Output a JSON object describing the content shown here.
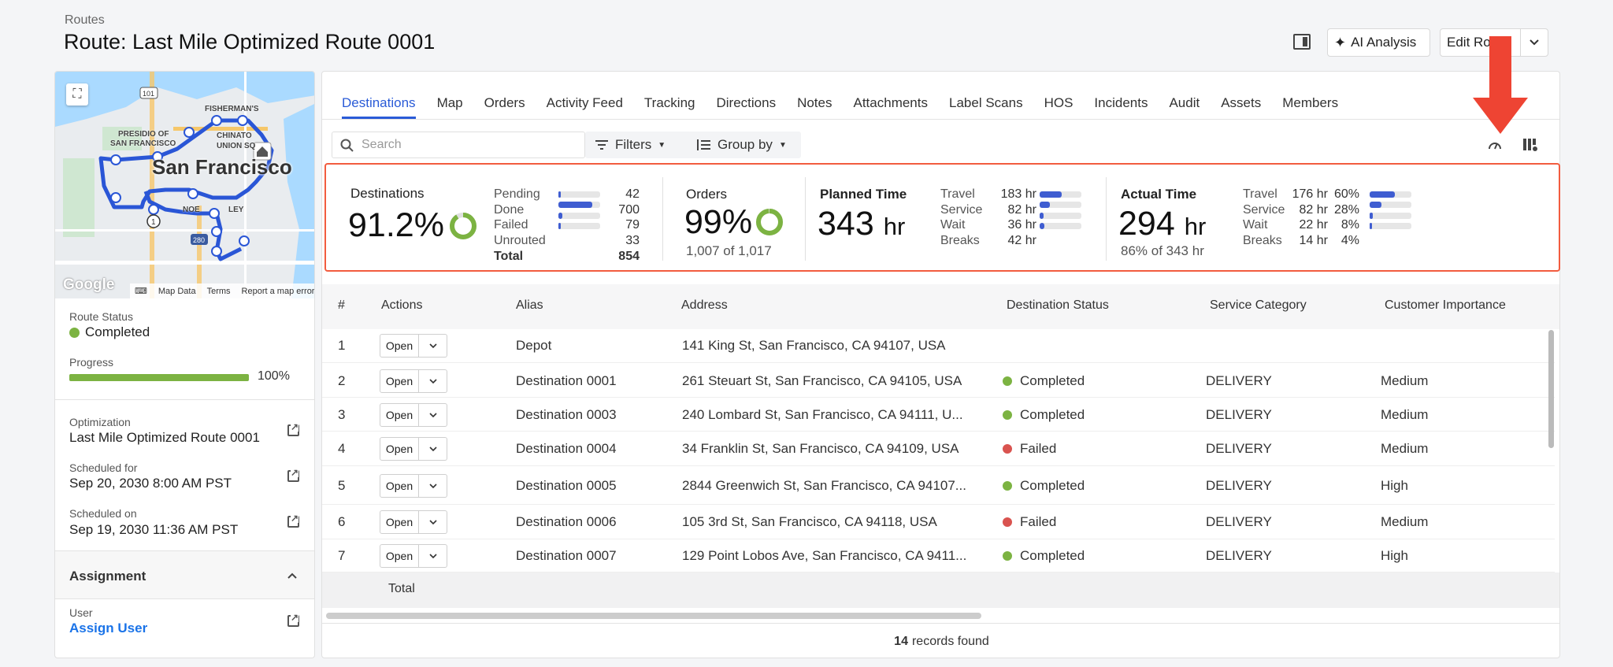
{
  "header": {
    "breadcrumb": "Routes",
    "title": "Route: Last Mile Optimized Route 0001",
    "ai_button": "AI Analysis",
    "edit_button": "Edit Ro"
  },
  "map": {
    "city_label": "San Francisco",
    "labels": [
      "FISHERMAN'S",
      "PRESIDIO OF",
      "SAN FRANCISCO",
      "CHINATO",
      "UNION SQ",
      "NOE",
      "LEY",
      "101",
      "280",
      "1"
    ],
    "google": "Google",
    "footer": [
      "Map Data",
      "Terms",
      "Report a map error"
    ]
  },
  "sidebar": {
    "route_status_label": "Route Status",
    "route_status": "Completed",
    "progress_label": "Progress",
    "progress_percent": 100,
    "progress_text": "100%",
    "optimization_label": "Optimization",
    "optimization_value": "Last Mile Optimized Route 0001",
    "scheduled_for_label": "Scheduled for",
    "scheduled_for_value": "Sep 20, 2030 8:00 AM PST",
    "scheduled_on_label": "Scheduled on",
    "scheduled_on_value": "Sep 19, 2030 11:36 AM PST",
    "assignment_title": "Assignment",
    "user_label": "User",
    "user_link": "Assign User"
  },
  "tabs": [
    "Destinations",
    "Map",
    "Orders",
    "Activity Feed",
    "Tracking",
    "Directions",
    "Notes",
    "Attachments",
    "Label Scans",
    "HOS",
    "Incidents",
    "Audit",
    "Assets",
    "Members"
  ],
  "toolbar": {
    "search_placeholder": "Search",
    "filters": "Filters",
    "group_by": "Group by"
  },
  "summary": {
    "destinations": {
      "title": "Destinations",
      "percent": "91.2%",
      "ring_fraction": 0.912,
      "breakdown": [
        {
          "label": "Pending",
          "value": "42",
          "fraction": 0.05
        },
        {
          "label": "Done",
          "value": "700",
          "fraction": 0.82
        },
        {
          "label": "Failed",
          "value": "79",
          "fraction": 0.09
        },
        {
          "label": "Unrouted",
          "value": "33",
          "fraction": 0.04
        }
      ],
      "total_label": "Total",
      "total_value": "854"
    },
    "orders": {
      "title": "Orders",
      "percent": "99%",
      "ring_fraction": 0.99,
      "sub": "1,007 of 1,017"
    },
    "planned": {
      "title": "Planned Time",
      "value": "343",
      "unit": "hr",
      "breakdown": [
        {
          "label": "Travel",
          "value": "183 hr",
          "fraction": 0.53
        },
        {
          "label": "Service",
          "value": "82 hr",
          "fraction": 0.24
        },
        {
          "label": "Wait",
          "value": "36 hr",
          "fraction": 0.1
        },
        {
          "label": "Breaks",
          "value": "42 hr",
          "fraction": 0.12
        }
      ]
    },
    "actual": {
      "title": "Actual Time",
      "value": "294",
      "unit": "hr",
      "sub": "86% of 343 hr",
      "breakdown": [
        {
          "label": "Travel",
          "value": "176 hr",
          "pct": "60%",
          "fraction": 0.6
        },
        {
          "label": "Service",
          "value": "82 hr",
          "pct": "28%",
          "fraction": 0.28
        },
        {
          "label": "Wait",
          "value": "22 hr",
          "pct": "8%",
          "fraction": 0.08
        },
        {
          "label": "Breaks",
          "value": "14 hr",
          "pct": "4%",
          "fraction": 0.04
        }
      ]
    }
  },
  "table": {
    "columns": [
      "#",
      "Actions",
      "Alias",
      "Address",
      "Destination Status",
      "Service Category",
      "Customer Importance"
    ],
    "open_label": "Open",
    "rows": [
      {
        "num": "1",
        "alias": "Depot",
        "address": "141 King St, San Francisco, CA 94107, USA",
        "status": "",
        "category": "",
        "importance": ""
      },
      {
        "num": "2",
        "alias": "Destination 0001",
        "address": "261 Steuart St, San Francisco, CA 94105, USA",
        "status": "Completed",
        "category": "DELIVERY",
        "importance": "Medium"
      },
      {
        "num": "3",
        "alias": "Destination 0003",
        "address": "240 Lombard St, San Francisco, CA 94111, U...",
        "status": "Completed",
        "category": "DELIVERY",
        "importance": "Medium"
      },
      {
        "num": "4",
        "alias": "Destination 0004",
        "address": "34 Franklin St, San Francisco, CA 94109, USA",
        "status": "Failed",
        "category": "DELIVERY",
        "importance": "Medium"
      },
      {
        "num": "5",
        "alias": "Destination 0005",
        "address": "2844 Greenwich St, San Francisco, CA 94107...",
        "status": "Completed",
        "category": "DELIVERY",
        "importance": "High"
      },
      {
        "num": "6",
        "alias": "Destination 0006",
        "address": "105 3rd St, San Francisco, CA 94118, USA",
        "status": "Failed",
        "category": "DELIVERY",
        "importance": "Medium"
      },
      {
        "num": "7",
        "alias": "Destination 0007",
        "address": "129 Point Lobos Ave, San Francisco, CA 9411...",
        "status": "Completed",
        "category": "DELIVERY",
        "importance": "High"
      }
    ],
    "total_label": "Total",
    "records_count": "14",
    "records_text": "records found"
  },
  "colors": {
    "accent": "#2a5bd7",
    "completed": "#7cb342",
    "failed": "#d9534f",
    "highlight": "#f25c3f",
    "bar": "#3f5dd1"
  }
}
